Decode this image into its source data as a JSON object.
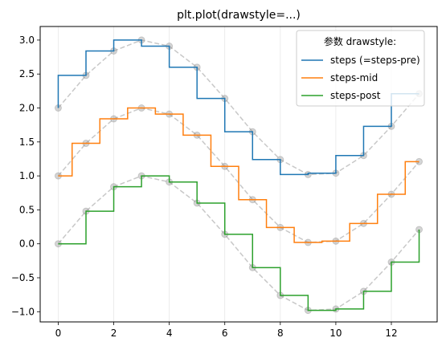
{
  "chart_data": {
    "type": "line",
    "title": "plt.plot(drawstyle=...)",
    "xlabel": "",
    "ylabel": "",
    "xlim": [
      -0.65,
      13.65
    ],
    "ylim": [
      -1.15,
      3.2
    ],
    "xticks": [
      0,
      2,
      4,
      6,
      8,
      10,
      12
    ],
    "yticks": [
      -1.0,
      -0.5,
      0.0,
      0.5,
      1.0,
      1.5,
      2.0,
      2.5,
      3.0
    ],
    "ytick_labels": [
      "−1.0",
      "−0.5",
      "0.0",
      "0.5",
      "1.0",
      "1.5",
      "2.0",
      "2.5",
      "3.0"
    ],
    "grid": "vertical",
    "legend": {
      "title": "参数 drawstyle:",
      "placement": "top-right"
    },
    "x": [
      0,
      1,
      2,
      3,
      4,
      5,
      6,
      7,
      8,
      9,
      10,
      11,
      12,
      13
    ],
    "reference_values": [
      0.0,
      0.48,
      0.84,
      1.0,
      0.91,
      0.6,
      0.14,
      -0.35,
      -0.76,
      -0.98,
      -0.96,
      -0.7,
      -0.27,
      0.21
    ],
    "series": [
      {
        "name": "steps (=steps-pre)",
        "drawstyle": "steps-pre",
        "color": "#1f77b4",
        "values": [
          2.0,
          2.48,
          2.84,
          3.0,
          2.91,
          2.6,
          2.14,
          1.65,
          1.24,
          1.02,
          1.04,
          1.3,
          1.73,
          2.21
        ]
      },
      {
        "name": "steps-mid",
        "drawstyle": "steps-mid",
        "color": "#ff7f0e",
        "values": [
          1.0,
          1.48,
          1.84,
          2.0,
          1.91,
          1.6,
          1.14,
          0.65,
          0.24,
          0.02,
          0.04,
          0.3,
          0.73,
          1.21
        ]
      },
      {
        "name": "steps-post",
        "drawstyle": "steps-post",
        "color": "#2ca02c",
        "values": [
          0.0,
          0.48,
          0.84,
          1.0,
          0.91,
          0.6,
          0.14,
          -0.35,
          -0.76,
          -0.98,
          -0.96,
          -0.7,
          -0.27,
          0.21
        ]
      }
    ]
  }
}
